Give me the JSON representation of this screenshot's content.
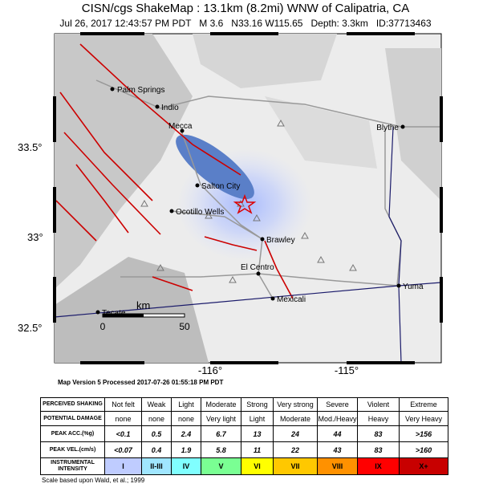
{
  "header": {
    "title": "CISN/cgs ShakeMap : 13.1km (8.2mi) WNW of Calipatria, CA",
    "subtitle": "Jul 26, 2017 12:43:57 PM PDT   M 3.6   N33.16 W115.65   Depth: 3.3km   ID:37713463"
  },
  "map": {
    "places": [
      "Palm Springs",
      "Indio",
      "Mecca",
      "Blythe",
      "Salton City",
      "Ocotillo Wells",
      "Brawley",
      "El Centro",
      "Mexicali",
      "Yuma",
      "Tecate"
    ],
    "lat_labels": [
      "33.5°",
      "33°",
      "32.5°"
    ],
    "lon_labels": [
      "-116°",
      "-115°"
    ],
    "scale": {
      "unit": "km",
      "ticks": [
        "0",
        "50"
      ]
    }
  },
  "version_note": "Map Version 5 Processed 2017-07-26 01:55:18 PM PDT",
  "table": {
    "rows": [
      [
        "PERCEIVED SHAKING",
        "Not felt",
        "Weak",
        "Light",
        "Moderate",
        "Strong",
        "Very strong",
        "Severe",
        "Violent",
        "Extreme"
      ],
      [
        "POTENTIAL DAMAGE",
        "none",
        "none",
        "none",
        "Very light",
        "Light",
        "Moderate",
        "Mod./Heavy",
        "Heavy",
        "Very Heavy"
      ],
      [
        "PEAK ACC.(%g)",
        "<0.1",
        "0.5",
        "2.4",
        "6.7",
        "13",
        "24",
        "44",
        "83",
        ">156"
      ],
      [
        "PEAK VEL.(cm/s)",
        "<0.07",
        "0.4",
        "1.9",
        "5.8",
        "11",
        "22",
        "43",
        "83",
        ">160"
      ],
      [
        "INSTRUMENTAL INTENSITY",
        "I",
        "II-III",
        "IV",
        "V",
        "VI",
        "VII",
        "VIII",
        "IX",
        "X+"
      ]
    ]
  },
  "footnote": "Scale based upon Wald, et al.; 1999"
}
